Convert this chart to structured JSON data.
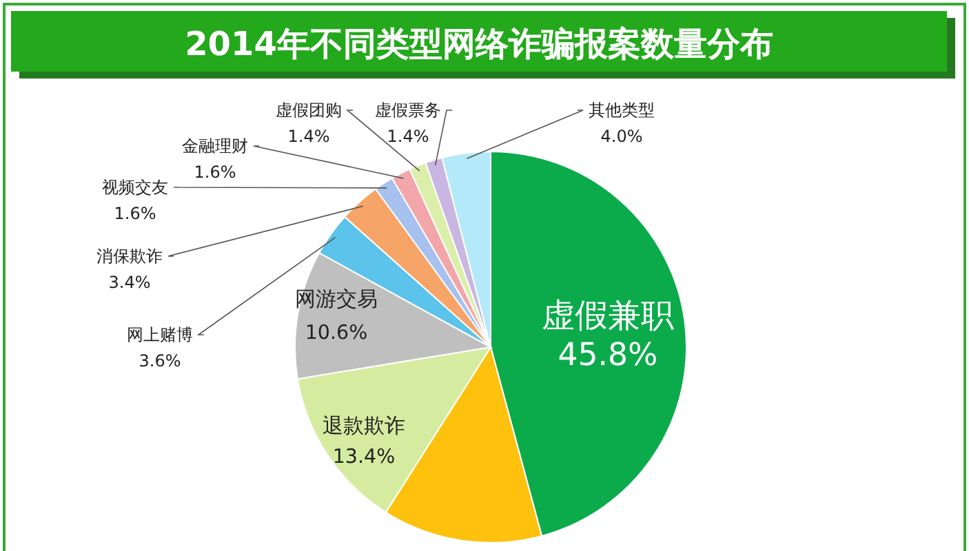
{
  "chart_data": {
    "type": "pie",
    "title": "2014年不同类型网络诈骗报案数量分布",
    "categories": [
      "虚假兼职",
      null,
      "退款欺诈",
      "网游交易",
      "网上赌博",
      "消保欺诈",
      "视频交友",
      "金融理财",
      "虚假团购",
      "虚假票务",
      "其他类型"
    ],
    "values": [
      45.8,
      13.2,
      13.4,
      10.6,
      3.6,
      3.4,
      1.6,
      1.6,
      1.4,
      1.4,
      4.0
    ],
    "value_labels": [
      "45.8%",
      null,
      "13.4%",
      "10.6%",
      "3.6%",
      "3.4%",
      "1.6%",
      "1.6%",
      "1.4%",
      "1.4%",
      "4.0%"
    ],
    "colors": [
      "#0bab4b",
      "#fdc10e",
      "#d5eca0",
      "#bfbfbf",
      "#5cc3ea",
      "#f6a468",
      "#a7c1ef",
      "#f3a6aa",
      "#dcefaa",
      "#c9b6e2",
      "#b3e9f9"
    ]
  }
}
